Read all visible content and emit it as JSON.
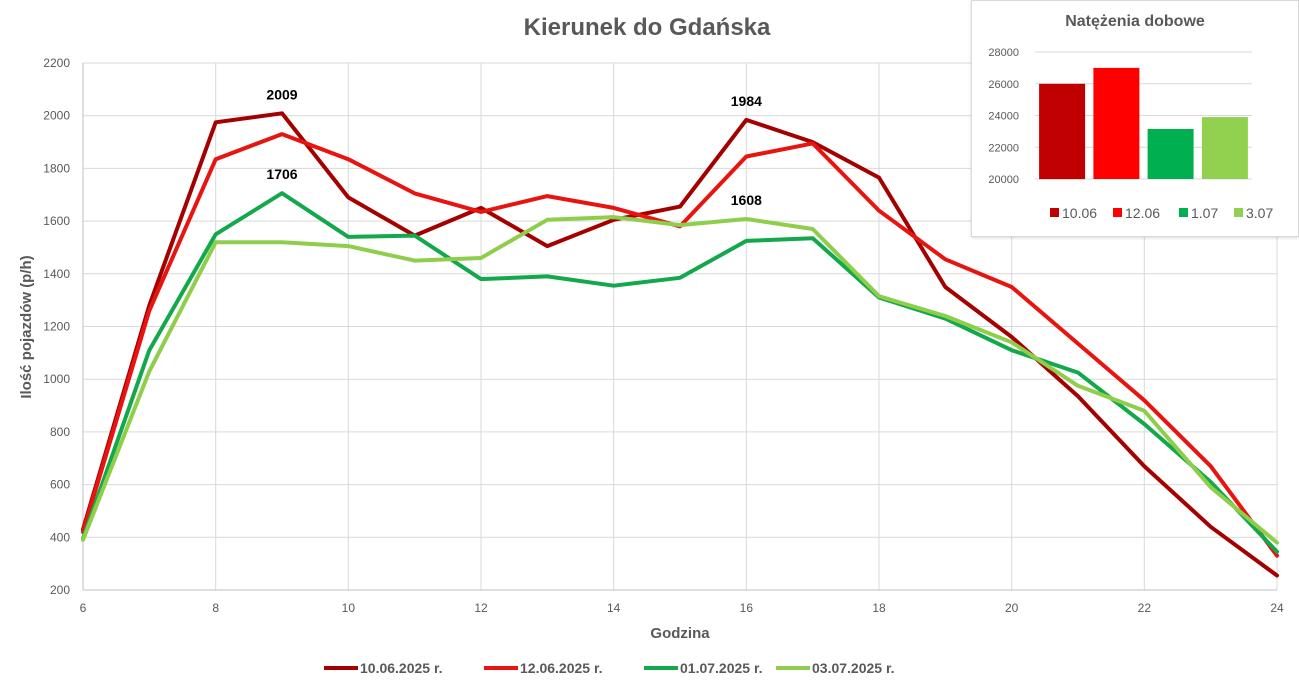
{
  "chart_data": [
    {
      "type": "line",
      "title": "Kierunek do Gdańska",
      "xlabel": "Godzina",
      "ylabel": "Ilość pojazdów (p/h)",
      "xlim": [
        6,
        24
      ],
      "ylim": [
        200,
        2200
      ],
      "xticks": [
        6,
        8,
        10,
        12,
        14,
        16,
        18,
        20,
        22,
        24
      ],
      "yticks": [
        200,
        400,
        600,
        800,
        1000,
        1200,
        1400,
        1600,
        1800,
        2000,
        2200
      ],
      "grid": true,
      "legend_position": "bottom",
      "x": [
        6,
        7,
        8,
        9,
        10,
        11,
        12,
        13,
        14,
        15,
        16,
        17,
        18,
        19,
        20,
        21,
        22,
        23,
        24
      ],
      "series": [
        {
          "name": "10.06.2025 r.",
          "color": "#a50000",
          "values": [
            430,
            1280,
            1975,
            2009,
            1690,
            1545,
            1650,
            1505,
            1605,
            1655,
            1984,
            1900,
            1765,
            1350,
            1160,
            935,
            670,
            440,
            255
          ]
        },
        {
          "name": "12.06.2025 r.",
          "color": "#e8140f",
          "values": [
            420,
            1260,
            1835,
            1930,
            1835,
            1705,
            1635,
            1695,
            1650,
            1580,
            1845,
            1895,
            1640,
            1455,
            1350,
            1135,
            920,
            670,
            330
          ]
        },
        {
          "name": "01.07.2025 r.",
          "color": "#12a84b",
          "values": [
            395,
            1110,
            1550,
            1706,
            1540,
            1545,
            1380,
            1390,
            1355,
            1385,
            1525,
            1535,
            1310,
            1230,
            1110,
            1025,
            830,
            610,
            345
          ]
        },
        {
          "name": "03.07.2025 r.",
          "color": "#8fce4a",
          "values": [
            390,
            1030,
            1520,
            1520,
            1505,
            1450,
            1460,
            1605,
            1615,
            1585,
            1608,
            1570,
            1315,
            1240,
            1140,
            975,
            880,
            590,
            380
          ]
        }
      ],
      "annotations": [
        {
          "text": "2009",
          "x": 9,
          "y": 2009
        },
        {
          "text": "1706",
          "x": 9,
          "y": 1706
        },
        {
          "text": "1984",
          "x": 16,
          "y": 1984
        },
        {
          "text": "1608",
          "x": 16,
          "y": 1608
        }
      ]
    },
    {
      "type": "bar",
      "title": "Natężenia dobowe",
      "categories": [
        "10.06",
        "12.06",
        "1.07",
        "3.07"
      ],
      "values": [
        26000,
        27000,
        23150,
        23900
      ],
      "colors": [
        "#c00000",
        "#ff0000",
        "#00b050",
        "#92d050"
      ],
      "ylim": [
        20000,
        28000
      ],
      "yticks": [
        20000,
        22000,
        24000,
        26000,
        28000
      ],
      "grid": true,
      "legend_position": "bottom"
    }
  ]
}
